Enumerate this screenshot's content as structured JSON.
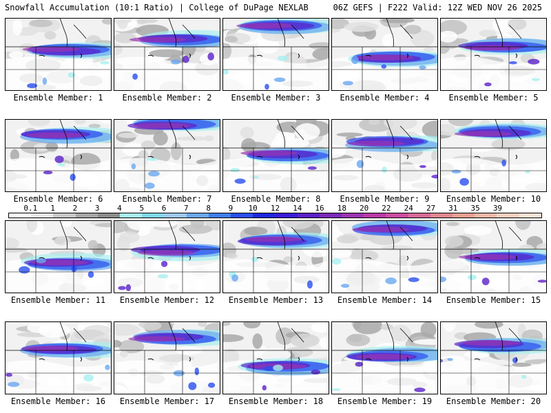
{
  "header": {
    "title_left": "Snowfall Accumulation (10:1 Ratio) | College of DuPage NEXLAB",
    "title_right": "06Z GEFS | F222 Valid: 12Z WED NOV 26 2025"
  },
  "colorbar": {
    "ticks": [
      "0.1",
      "1",
      "2",
      "3",
      "4",
      "5",
      "6",
      "7",
      "8",
      "9",
      "10",
      "12",
      "14",
      "16",
      "18",
      "20",
      "22",
      "24",
      "27",
      "31",
      "35",
      "39"
    ],
    "colors": [
      "#ffffff",
      "#e6e6e6",
      "#c8c8c8",
      "#a6a6a6",
      "#8c8c8c",
      "#a8f0f0",
      "#7fd8e8",
      "#9ec8f0",
      "#6aa8f0",
      "#3f7fe8",
      "#2a4ff0",
      "#1e28e0",
      "#3a1cd8",
      "#5a20c8",
      "#7a2ab8",
      "#9a34b0",
      "#b83aa8",
      "#cc4ca0",
      "#d86a98",
      "#e08890",
      "#e8a090",
      "#f0b8a8",
      "#f5d0c0",
      "#fae2d6"
    ],
    "tick_color": "#000000"
  },
  "panels": [
    {
      "label": "Ensemble Member: 1",
      "seed": 1
    },
    {
      "label": "Ensemble Member: 2",
      "seed": 2
    },
    {
      "label": "Ensemble Member: 3",
      "seed": 3
    },
    {
      "label": "Ensemble Member: 4",
      "seed": 4
    },
    {
      "label": "Ensemble Member: 5",
      "seed": 5
    },
    {
      "label": "Ensemble Member: 6",
      "seed": 6
    },
    {
      "label": "Ensemble Member: 7",
      "seed": 7
    },
    {
      "label": "Ensemble Member: 8",
      "seed": 8
    },
    {
      "label": "Ensemble Member: 9",
      "seed": 9
    },
    {
      "label": "Ensemble Member: 10",
      "seed": 10
    },
    {
      "label": "Ensemble Member: 11",
      "seed": 11
    },
    {
      "label": "Ensemble Member: 12",
      "seed": 12
    },
    {
      "label": "Ensemble Member: 13",
      "seed": 13
    },
    {
      "label": "Ensemble Member: 14",
      "seed": 14
    },
    {
      "label": "Ensemble Member: 15",
      "seed": 15
    },
    {
      "label": "Ensemble Member: 16",
      "seed": 16
    },
    {
      "label": "Ensemble Member: 17",
      "seed": 17
    },
    {
      "label": "Ensemble Member: 18",
      "seed": 18
    },
    {
      "label": "Ensemble Member: 19",
      "seed": 19
    },
    {
      "label": "Ensemble Member: 20",
      "seed": 20
    }
  ]
}
